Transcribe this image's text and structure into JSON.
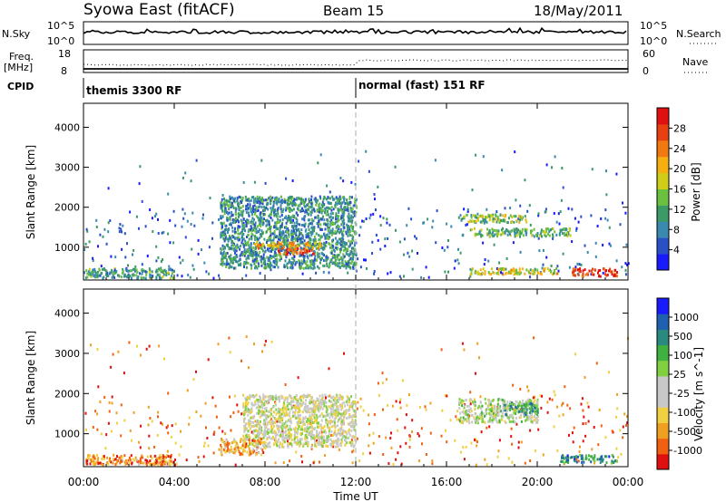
{
  "header": {
    "station": "Syowa East (fitACF)",
    "beam": "Beam 15",
    "date": "18/May/2011"
  },
  "strips": {
    "nsky_label": "N.Sky",
    "nsky_ticks": [
      "10^5",
      "10^0"
    ],
    "nsearch_label": "N.Search",
    "nsearch_ticks": [
      "10^5",
      "10^0"
    ],
    "freq_label_1": "Freq.",
    "freq_label_2": "[MHz]",
    "freq_ticks": [
      "18",
      "8"
    ],
    "nave_label": "Nave",
    "nave_ticks": [
      "60",
      "0"
    ],
    "cpid_label": "CPID",
    "cpid_segments": [
      "themis 3300 RF",
      "normal (fast) 151 RF"
    ]
  },
  "chart_data": [
    {
      "type": "heatmap",
      "name": "power",
      "ylabel": "Slant Range [km]",
      "xlabel": "",
      "x_ticks": [
        "00:00",
        "04:00",
        "08:00",
        "12:00",
        "16:00",
        "20:00",
        "00:00"
      ],
      "x_range_hours": [
        0,
        24
      ],
      "ylim": [
        180,
        4600
      ],
      "y_ticks": [
        1000,
        2000,
        3000,
        4000
      ],
      "colorbar": {
        "label": "Power [dB]",
        "ticks": [
          "28",
          "24",
          "20",
          "16",
          "12",
          "8",
          "4"
        ],
        "colors_low_to_high": [
          "#1a1aff",
          "#2a50c8",
          "#3a8ab0",
          "#3c9a66",
          "#6cc040",
          "#d0cc18",
          "#f5b010",
          "#f07a10",
          "#e84010",
          "#e01010"
        ]
      },
      "features": [
        {
          "h0": 6.0,
          "h1": 12.0,
          "r0": 500,
          "r1": 2300,
          "level": 0.3
        },
        {
          "h0": 7.5,
          "h1": 10.5,
          "r0": 1000,
          "r1": 1150,
          "level": 0.65
        },
        {
          "h0": 8.5,
          "h1": 10.2,
          "r0": 850,
          "r1": 1000,
          "level": 0.85
        },
        {
          "h0": 16.5,
          "h1": 19.5,
          "r0": 1650,
          "r1": 1850,
          "level": 0.45
        },
        {
          "h0": 17.0,
          "h1": 21.5,
          "r0": 1300,
          "r1": 1500,
          "level": 0.4
        },
        {
          "h0": 21.5,
          "h1": 23.5,
          "r0": 300,
          "r1": 500,
          "level": 0.9
        },
        {
          "h0": 17.0,
          "h1": 21.0,
          "r0": 350,
          "r1": 500,
          "level": 0.55
        },
        {
          "h0": 0.0,
          "h1": 4.0,
          "r0": 250,
          "r1": 500,
          "level": 0.35
        }
      ]
    },
    {
      "type": "heatmap",
      "name": "velocity",
      "ylabel": "Slant Range [km]",
      "xlabel": "Time UT",
      "x_ticks": [
        "00:00",
        "04:00",
        "08:00",
        "12:00",
        "16:00",
        "20:00",
        "00:00"
      ],
      "x_range_hours": [
        0,
        24
      ],
      "ylim": [
        180,
        4600
      ],
      "y_ticks": [
        1000,
        2000,
        3000,
        4000
      ],
      "colorbar": {
        "label": "Velocity [m s^-1]",
        "ticks": [
          "1000",
          "500",
          "100",
          "25",
          "-25",
          "-100",
          "-500",
          "-1000"
        ],
        "colors_low_to_high": [
          "#e01010",
          "#f06010",
          "#f0a020",
          "#f0d040",
          "#c8c8c8",
          "#c8c8c8",
          "#80d040",
          "#40b040",
          "#2a8a80",
          "#2060b0",
          "#1a1aff"
        ]
      },
      "features": [
        {
          "h0": 7.0,
          "h1": 12.0,
          "r0": 700,
          "r1": 2000,
          "level": 0.45
        },
        {
          "h0": 16.5,
          "h1": 20.0,
          "r0": 1300,
          "r1": 1900,
          "level": 0.5
        },
        {
          "h0": 18.5,
          "h1": 20.0,
          "r0": 1500,
          "r1": 1800,
          "level": 0.7
        },
        {
          "h0": 21.0,
          "h1": 23.5,
          "r0": 300,
          "r1": 500,
          "level": 0.75
        },
        {
          "h0": 6.0,
          "h1": 8.0,
          "r0": 500,
          "r1": 900,
          "level": 0.25
        },
        {
          "h0": 0.0,
          "h1": 4.0,
          "r0": 250,
          "r1": 500,
          "level": 0.2
        }
      ]
    }
  ]
}
